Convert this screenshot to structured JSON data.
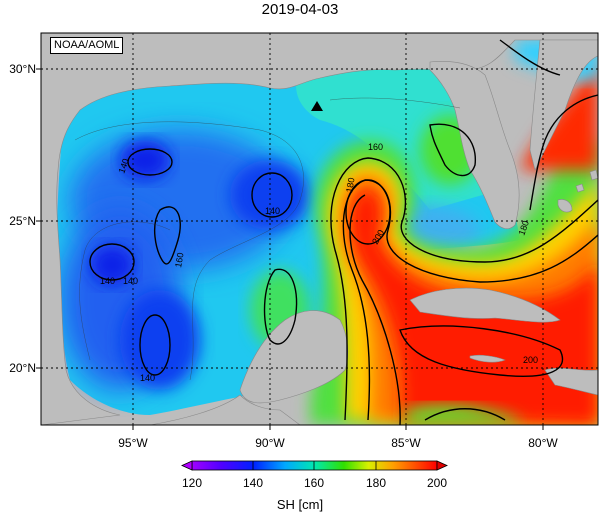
{
  "title": "2019-04-03",
  "source_label": "NOAA/AOML",
  "lat_labels": [
    "30°N",
    "25°N",
    "20°N"
  ],
  "lon_labels": [
    "95°W",
    "90°W",
    "85°W",
    "80°W"
  ],
  "contour_labels": [
    "140",
    "140",
    "140",
    "140",
    "140",
    "160",
    "160",
    "180",
    "180",
    "200",
    "200"
  ],
  "colorbar": {
    "label": "SH [cm]",
    "ticks": [
      "120",
      "140",
      "160",
      "180",
      "200"
    ],
    "min": 120,
    "max": 200
  },
  "colors": {
    "land": "#bdbdbd",
    "ocean_low": "#0030ff",
    "ocean_high": "#ff0000"
  },
  "marker": {
    "symbol": "triangle",
    "lat": 28.4,
    "lon": -88.4
  }
}
